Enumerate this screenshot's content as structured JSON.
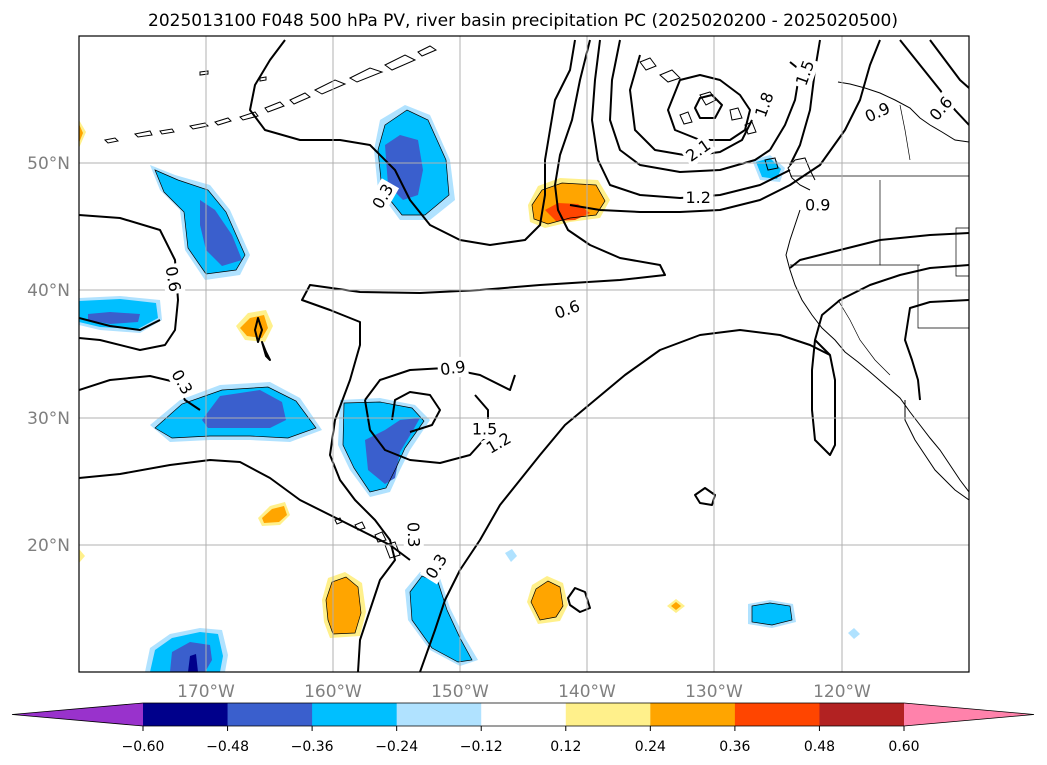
{
  "title": "2025013100 F048 500 hPa PV, river basin precipitation PC (2025020200 - 2025020500)",
  "map": {
    "lon_range": [
      -180,
      -110
    ],
    "lat_range": [
      10,
      60
    ],
    "lon_ticks": [
      {
        "value": -170,
        "label": "170°W"
      },
      {
        "value": -160,
        "label": "160°W"
      },
      {
        "value": -150,
        "label": "150°W"
      },
      {
        "value": -140,
        "label": "140°W"
      },
      {
        "value": -130,
        "label": "130°W"
      },
      {
        "value": -120,
        "label": "120°W"
      }
    ],
    "lat_ticks": [
      {
        "value": 20,
        "label": "20°N"
      },
      {
        "value": 30,
        "label": "30°N"
      },
      {
        "value": 40,
        "label": "40°N"
      },
      {
        "value": 50,
        "label": "50°N"
      }
    ],
    "grid": true,
    "contour_labels": [
      {
        "text": "0.6",
        "lon": -172.6,
        "lat": 40.9,
        "rot": 80
      },
      {
        "text": "0.3",
        "lon": -171.9,
        "lat": 32.8,
        "rot": 60
      },
      {
        "text": "0.3",
        "lon": -156.1,
        "lat": 47.4,
        "rot": -60
      },
      {
        "text": "0.3",
        "lon": -153.7,
        "lat": 20.8,
        "rot": 88
      },
      {
        "text": "0.3",
        "lon": -151.9,
        "lat": 18.3,
        "rot": -58
      },
      {
        "text": "0.6",
        "lon": -141.6,
        "lat": 38.5,
        "rot": -20
      },
      {
        "text": "0.9",
        "lon": -150.6,
        "lat": 33.9,
        "rot": -8
      },
      {
        "text": "1.5",
        "lon": -148.1,
        "lat": 29.1,
        "rot": 0
      },
      {
        "text": "1.2",
        "lon": -147.0,
        "lat": 28.0,
        "rot": -30
      },
      {
        "text": "1.2",
        "lon": -131.3,
        "lat": 47.3,
        "rot": 0
      },
      {
        "text": "2.1",
        "lon": -131.3,
        "lat": 51.0,
        "rot": -35
      },
      {
        "text": "1.8",
        "lon": -126.1,
        "lat": 54.6,
        "rot": -70
      },
      {
        "text": "1.5",
        "lon": -122.9,
        "lat": 57.1,
        "rot": -70
      },
      {
        "text": "0.9",
        "lon": -117.2,
        "lat": 54.0,
        "rot": -25
      },
      {
        "text": "0.6",
        "lon": -112.2,
        "lat": 54.3,
        "rot": -50
      },
      {
        "text": "0.9",
        "lon": -121.9,
        "lat": 46.7,
        "rot": 0
      }
    ]
  },
  "colorbar": {
    "levels": [
      -0.6,
      -0.48,
      -0.36,
      -0.24,
      -0.12,
      0.12,
      0.24,
      0.36,
      0.48,
      0.6
    ],
    "labels": [
      "−0.60",
      "−0.48",
      "−0.36",
      "−0.24",
      "−0.12",
      "0.12",
      "0.24",
      "0.36",
      "0.48",
      "0.60"
    ],
    "colors": [
      "#9932cc",
      "#00008b",
      "#3a5fcd",
      "#00bfff",
      "#b0e2ff",
      "#ffffff",
      "#fff08b",
      "#ffa500",
      "#ff4500",
      "#b22222",
      "#ff82ab"
    ],
    "extend": "both"
  }
}
